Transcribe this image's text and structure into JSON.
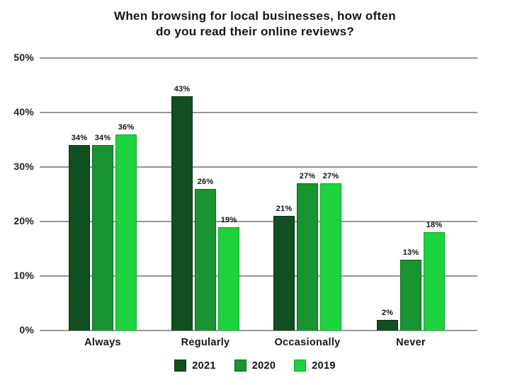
{
  "header": {
    "title_line1": "When browsing for local businesses, how often",
    "title_line2": "do you read their online reviews?"
  },
  "chart_data": {
    "type": "bar",
    "title": "When browsing for local businesses, how often do you read their online reviews?",
    "categories": [
      "Always",
      "Regularly",
      "Occasionally",
      "Never"
    ],
    "series": [
      {
        "name": "2021",
        "color": "#114e20",
        "border_color": "#083311",
        "values": [
          34,
          43,
          21,
          2
        ]
      },
      {
        "name": "2020",
        "color": "#189431",
        "border_color": "#0d6420",
        "values": [
          34,
          26,
          27,
          13
        ]
      },
      {
        "name": "2019",
        "color": "#1cd23d",
        "border_color": "#12a52f",
        "values": [
          36,
          19,
          27,
          18
        ]
      }
    ],
    "data_label_suffix": "%",
    "ylim": [
      0,
      50
    ],
    "yticks": [
      "0%",
      "10%",
      "20%",
      "30%",
      "40%",
      "50%"
    ],
    "grid": true,
    "gridline_color": "#969696",
    "legend_position": "bottom",
    "legend": [
      "2021",
      "2020",
      "2019"
    ],
    "text_color": "#1a1a1a",
    "background_color": "#ffffff"
  }
}
